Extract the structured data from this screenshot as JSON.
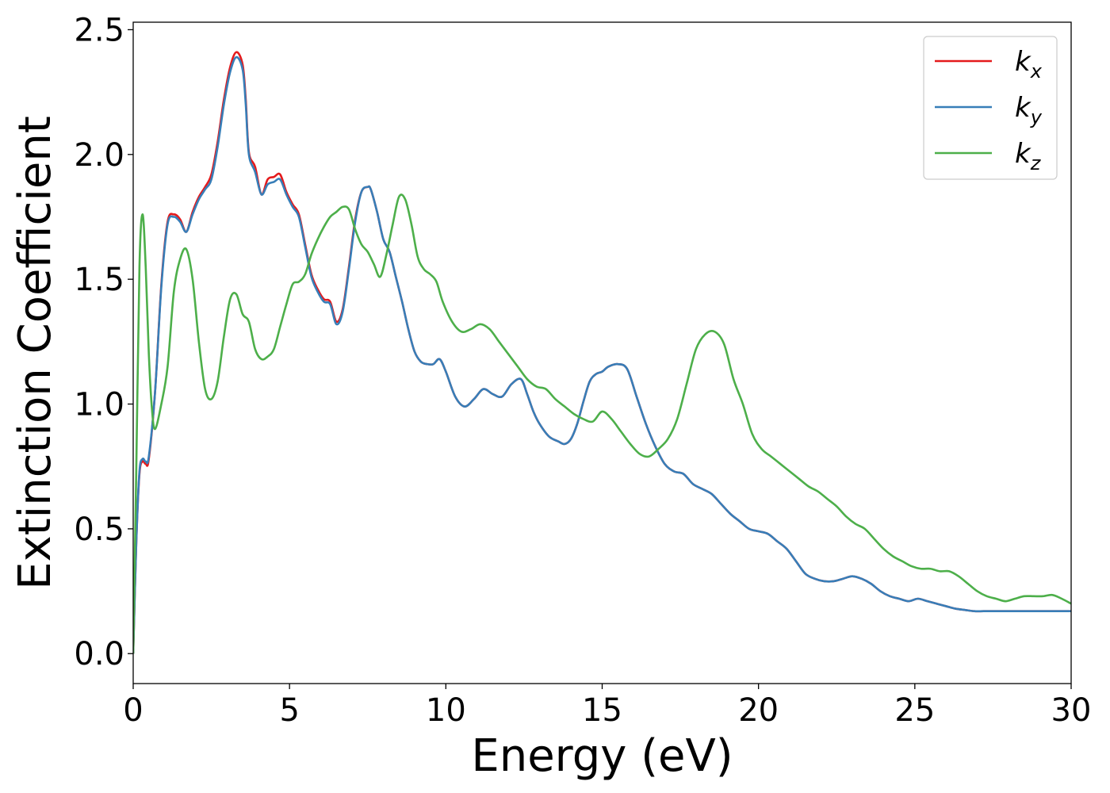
{
  "chart_data": {
    "type": "line",
    "xlabel": "Energy (eV)",
    "ylabel": "Extinction Coefficient",
    "xlim": [
      0,
      30
    ],
    "ylim": [
      -0.12,
      2.53
    ],
    "xticks": [
      0,
      5,
      10,
      15,
      20,
      25,
      30
    ],
    "xtick_labels": [
      "0",
      "5",
      "10",
      "15",
      "20",
      "25",
      "30"
    ],
    "yticks": [
      0.0,
      0.5,
      1.0,
      1.5,
      2.0,
      2.5
    ],
    "ytick_labels": [
      "0.0",
      "0.5",
      "1.0",
      "1.5",
      "2.0",
      "2.5"
    ],
    "grid": false,
    "legend_position": "top-right",
    "series": [
      {
        "name": "k_x",
        "label_base": "k",
        "label_sub": "x",
        "color": "#e41a1c",
        "x": [
          0,
          0.1,
          0.2,
          0.3,
          0.4,
          0.5,
          0.7,
          0.9,
          1.1,
          1.3,
          1.5,
          1.7,
          1.9,
          2.1,
          2.3,
          2.5,
          2.7,
          2.9,
          3.1,
          3.3,
          3.5,
          3.6,
          3.7,
          3.9,
          4.1,
          4.3,
          4.5,
          4.7,
          4.9,
          5.1,
          5.3,
          5.5,
          5.7,
          5.9,
          6.1,
          6.3,
          6.5,
          6.7,
          6.9,
          7.1,
          7.3,
          7.5,
          7.6,
          7.8,
          8.0,
          8.2,
          8.4,
          8.6,
          8.8,
          9.0,
          9.2,
          9.4,
          9.6,
          9.8,
          10.0,
          10.3,
          10.6,
          10.9,
          11.2,
          11.5,
          11.8,
          12.1,
          12.4,
          12.6,
          12.8,
          13.0,
          13.3,
          13.6,
          13.8,
          14.0,
          14.2,
          14.4,
          14.6,
          14.8,
          15.0,
          15.2,
          15.5,
          15.8,
          16.1,
          16.4,
          16.7,
          17.0,
          17.3,
          17.6,
          17.9,
          18.2,
          18.5,
          18.8,
          19.1,
          19.4,
          19.7,
          20.0,
          20.3,
          20.6,
          20.9,
          21.2,
          21.5,
          21.8,
          22.1,
          22.4,
          22.7,
          23.0,
          23.3,
          23.6,
          23.9,
          24.2,
          24.5,
          24.8,
          25.1,
          25.4,
          25.7,
          26.0,
          26.3,
          26.6,
          26.9,
          27.2,
          27.5,
          27.8,
          28.1,
          28.4,
          28.7,
          29.0,
          29.3,
          29.6,
          30.0
        ],
        "y": [
          0.0,
          0.45,
          0.72,
          0.77,
          0.76,
          0.78,
          1.05,
          1.48,
          1.73,
          1.76,
          1.74,
          1.69,
          1.77,
          1.83,
          1.87,
          1.92,
          2.05,
          2.22,
          2.35,
          2.41,
          2.36,
          2.22,
          2.01,
          1.95,
          1.84,
          1.9,
          1.91,
          1.92,
          1.85,
          1.8,
          1.76,
          1.64,
          1.52,
          1.46,
          1.42,
          1.41,
          1.33,
          1.38,
          1.55,
          1.74,
          1.85,
          1.87,
          1.86,
          1.77,
          1.66,
          1.61,
          1.51,
          1.41,
          1.3,
          1.21,
          1.17,
          1.16,
          1.16,
          1.18,
          1.13,
          1.03,
          0.99,
          1.02,
          1.06,
          1.04,
          1.03,
          1.08,
          1.1,
          1.04,
          0.97,
          0.92,
          0.87,
          0.85,
          0.84,
          0.86,
          0.92,
          1.01,
          1.09,
          1.12,
          1.13,
          1.15,
          1.16,
          1.14,
          1.03,
          0.92,
          0.83,
          0.76,
          0.73,
          0.72,
          0.68,
          0.66,
          0.64,
          0.6,
          0.56,
          0.53,
          0.5,
          0.49,
          0.48,
          0.45,
          0.42,
          0.37,
          0.32,
          0.3,
          0.29,
          0.29,
          0.3,
          0.31,
          0.3,
          0.28,
          0.25,
          0.23,
          0.22,
          0.21,
          0.22,
          0.21,
          0.2,
          0.19,
          0.18,
          0.175,
          0.17,
          0.17,
          0.17,
          0.17,
          0.17,
          0.17,
          0.17,
          0.17,
          0.17,
          0.17,
          0.17
        ]
      },
      {
        "name": "k_y",
        "label_base": "k",
        "label_sub": "y",
        "color": "#377eb8",
        "x": [
          0,
          0.1,
          0.2,
          0.3,
          0.4,
          0.5,
          0.7,
          0.9,
          1.1,
          1.3,
          1.5,
          1.7,
          1.9,
          2.1,
          2.3,
          2.5,
          2.7,
          2.9,
          3.1,
          3.3,
          3.5,
          3.6,
          3.7,
          3.9,
          4.1,
          4.3,
          4.5,
          4.7,
          4.9,
          5.1,
          5.3,
          5.5,
          5.7,
          5.9,
          6.1,
          6.3,
          6.5,
          6.7,
          6.9,
          7.1,
          7.3,
          7.5,
          7.6,
          7.8,
          8.0,
          8.2,
          8.4,
          8.6,
          8.8,
          9.0,
          9.2,
          9.4,
          9.6,
          9.8,
          10.0,
          10.3,
          10.6,
          10.9,
          11.2,
          11.5,
          11.8,
          12.1,
          12.4,
          12.6,
          12.8,
          13.0,
          13.3,
          13.6,
          13.8,
          14.0,
          14.2,
          14.4,
          14.6,
          14.8,
          15.0,
          15.2,
          15.5,
          15.8,
          16.1,
          16.4,
          16.7,
          17.0,
          17.3,
          17.6,
          17.9,
          18.2,
          18.5,
          18.8,
          19.1,
          19.4,
          19.7,
          20.0,
          20.3,
          20.6,
          20.9,
          21.2,
          21.5,
          21.8,
          22.1,
          22.4,
          22.7,
          23.0,
          23.3,
          23.6,
          23.9,
          24.2,
          24.5,
          24.8,
          25.1,
          25.4,
          25.7,
          26.0,
          26.3,
          26.6,
          26.9,
          27.2,
          27.5,
          27.8,
          28.1,
          28.4,
          28.7,
          29.0,
          29.3,
          29.6,
          30.0
        ],
        "y": [
          0.0,
          0.45,
          0.73,
          0.78,
          0.77,
          0.79,
          1.05,
          1.47,
          1.72,
          1.75,
          1.73,
          1.69,
          1.76,
          1.82,
          1.86,
          1.9,
          2.03,
          2.2,
          2.33,
          2.39,
          2.34,
          2.2,
          2.0,
          1.93,
          1.84,
          1.88,
          1.89,
          1.9,
          1.84,
          1.79,
          1.75,
          1.63,
          1.51,
          1.45,
          1.41,
          1.4,
          1.32,
          1.37,
          1.54,
          1.73,
          1.85,
          1.87,
          1.86,
          1.77,
          1.66,
          1.61,
          1.51,
          1.41,
          1.3,
          1.21,
          1.17,
          1.16,
          1.16,
          1.18,
          1.13,
          1.03,
          0.99,
          1.02,
          1.06,
          1.04,
          1.03,
          1.08,
          1.1,
          1.04,
          0.97,
          0.92,
          0.87,
          0.85,
          0.84,
          0.86,
          0.92,
          1.01,
          1.09,
          1.12,
          1.13,
          1.15,
          1.16,
          1.14,
          1.03,
          0.92,
          0.83,
          0.76,
          0.73,
          0.72,
          0.68,
          0.66,
          0.64,
          0.6,
          0.56,
          0.53,
          0.5,
          0.49,
          0.48,
          0.45,
          0.42,
          0.37,
          0.32,
          0.3,
          0.29,
          0.29,
          0.3,
          0.31,
          0.3,
          0.28,
          0.25,
          0.23,
          0.22,
          0.21,
          0.22,
          0.21,
          0.2,
          0.19,
          0.18,
          0.175,
          0.17,
          0.17,
          0.17,
          0.17,
          0.17,
          0.17,
          0.17,
          0.17,
          0.17,
          0.17,
          0.17
        ]
      },
      {
        "name": "k_z",
        "label_base": "k",
        "label_sub": "z",
        "color": "#4daf4a",
        "x": [
          0,
          0.1,
          0.2,
          0.3,
          0.4,
          0.5,
          0.6,
          0.7,
          0.9,
          1.1,
          1.3,
          1.5,
          1.7,
          1.9,
          2.1,
          2.3,
          2.5,
          2.7,
          2.9,
          3.1,
          3.3,
          3.5,
          3.7,
          3.9,
          4.1,
          4.3,
          4.5,
          4.7,
          4.9,
          5.1,
          5.3,
          5.5,
          5.7,
          5.9,
          6.1,
          6.3,
          6.5,
          6.7,
          6.9,
          7.1,
          7.3,
          7.5,
          7.7,
          7.9,
          8.1,
          8.3,
          8.5,
          8.7,
          8.9,
          9.1,
          9.3,
          9.5,
          9.7,
          9.9,
          10.2,
          10.5,
          10.8,
          11.1,
          11.4,
          11.7,
          12.0,
          12.3,
          12.6,
          12.9,
          13.2,
          13.5,
          13.8,
          14.1,
          14.4,
          14.7,
          15.0,
          15.3,
          15.6,
          15.9,
          16.2,
          16.5,
          16.8,
          17.1,
          17.4,
          17.7,
          18.0,
          18.3,
          18.6,
          18.9,
          19.2,
          19.5,
          19.8,
          20.1,
          20.4,
          20.7,
          21.0,
          21.3,
          21.6,
          21.9,
          22.2,
          22.5,
          22.8,
          23.1,
          23.4,
          23.7,
          24.0,
          24.3,
          24.6,
          24.9,
          25.2,
          25.5,
          25.8,
          26.1,
          26.4,
          26.7,
          27.0,
          27.3,
          27.6,
          27.9,
          28.2,
          28.5,
          28.8,
          29.1,
          29.4,
          29.7,
          30.0
        ],
        "y": [
          0.0,
          0.75,
          1.55,
          1.76,
          1.55,
          1.2,
          0.98,
          0.9,
          1.0,
          1.15,
          1.45,
          1.58,
          1.62,
          1.5,
          1.25,
          1.06,
          1.02,
          1.09,
          1.27,
          1.42,
          1.44,
          1.36,
          1.33,
          1.22,
          1.18,
          1.19,
          1.22,
          1.31,
          1.4,
          1.48,
          1.49,
          1.52,
          1.6,
          1.66,
          1.71,
          1.75,
          1.77,
          1.79,
          1.78,
          1.7,
          1.64,
          1.61,
          1.56,
          1.51,
          1.6,
          1.72,
          1.83,
          1.82,
          1.72,
          1.59,
          1.54,
          1.52,
          1.49,
          1.41,
          1.33,
          1.29,
          1.3,
          1.32,
          1.3,
          1.25,
          1.2,
          1.15,
          1.1,
          1.07,
          1.06,
          1.02,
          0.99,
          0.96,
          0.94,
          0.93,
          0.97,
          0.94,
          0.89,
          0.84,
          0.8,
          0.79,
          0.82,
          0.86,
          0.94,
          1.08,
          1.22,
          1.28,
          1.29,
          1.24,
          1.1,
          1.0,
          0.88,
          0.82,
          0.79,
          0.76,
          0.73,
          0.7,
          0.67,
          0.65,
          0.62,
          0.59,
          0.55,
          0.52,
          0.5,
          0.46,
          0.42,
          0.39,
          0.37,
          0.35,
          0.34,
          0.34,
          0.33,
          0.33,
          0.31,
          0.28,
          0.25,
          0.23,
          0.22,
          0.21,
          0.22,
          0.23,
          0.23,
          0.23,
          0.235,
          0.22,
          0.2
        ]
      }
    ]
  }
}
